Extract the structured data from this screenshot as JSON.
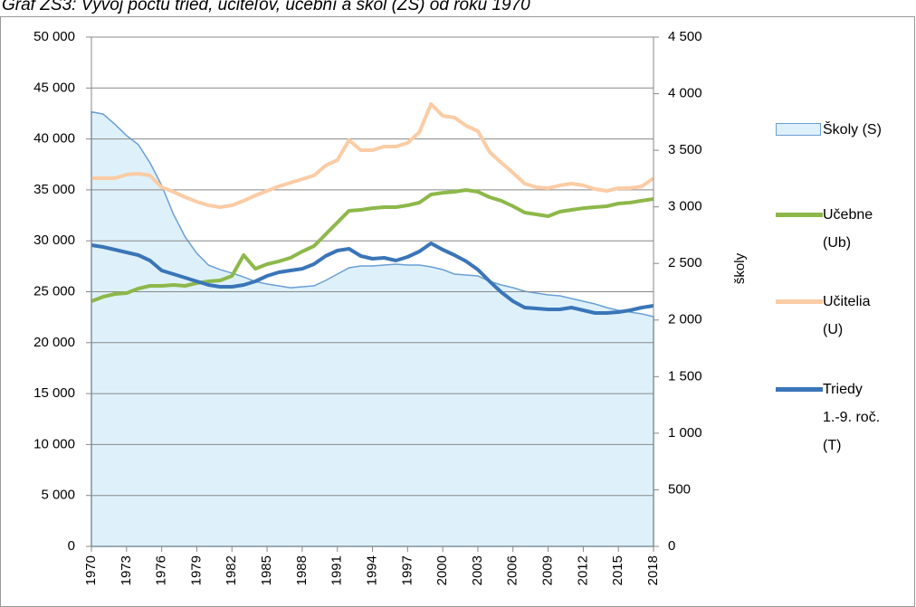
{
  "chart_data": {
    "type": "line",
    "title": "Graf ZŠ3: Vývoj počtu tried, učiteľov, učební a škôl (ZŠ) od roku 1970",
    "y2label": "školy",
    "x": [
      1970,
      1971,
      1972,
      1973,
      1974,
      1975,
      1976,
      1977,
      1978,
      1979,
      1980,
      1981,
      1982,
      1983,
      1984,
      1985,
      1986,
      1987,
      1988,
      1989,
      1990,
      1991,
      1992,
      1993,
      1994,
      1995,
      1996,
      1997,
      1998,
      1999,
      2000,
      2001,
      2002,
      2003,
      2004,
      2005,
      2006,
      2007,
      2008,
      2009,
      2010,
      2011,
      2012,
      2013,
      2014,
      2015,
      2016,
      2017,
      2018
    ],
    "xlim": [
      1970,
      2018
    ],
    "xticks": [
      1970,
      1973,
      1976,
      1979,
      1982,
      1985,
      1988,
      1991,
      1994,
      1997,
      2000,
      2003,
      2006,
      2009,
      2012,
      2015,
      2018
    ],
    "ylim": [
      0,
      50000
    ],
    "yticks": [
      0,
      {
        "value": 5000,
        "label": "5 000"
      },
      {
        "value": 10000,
        "label": "10 000"
      },
      {
        "value": 15000,
        "label": "15 000"
      },
      {
        "value": 20000,
        "label": "20 000"
      },
      {
        "value": 25000,
        "label": "25 000"
      },
      {
        "value": 30000,
        "label": "30 000"
      },
      {
        "value": 35000,
        "label": "35 000"
      },
      {
        "value": 40000,
        "label": "40 000"
      },
      {
        "value": 45000,
        "label": "45 000"
      },
      {
        "value": 50000,
        "label": "50 000"
      }
    ],
    "y2lim": [
      0,
      4500
    ],
    "y2ticks": [
      0,
      500,
      {
        "value": 1000,
        "label": "1 000"
      },
      {
        "value": 1500,
        "label": "1 500"
      },
      {
        "value": 2000,
        "label": "2 000"
      },
      {
        "value": 2500,
        "label": "2 500"
      },
      {
        "value": 3000,
        "label": "3 000"
      },
      {
        "value": 3500,
        "label": "3 500"
      },
      {
        "value": 4000,
        "label": "4 000"
      },
      {
        "value": 4500,
        "label": "4 500"
      }
    ],
    "grid": true,
    "legend": "right",
    "series": [
      {
        "name": "Školy (S)",
        "axis": "y2",
        "area": true,
        "color": "#6a9fd4",
        "fill_color": "#def1fb",
        "values": [
          3840,
          3820,
          3730,
          3630,
          3550,
          3390,
          3190,
          2935,
          2735,
          2590,
          2485,
          2445,
          2415,
          2380,
          2340,
          2318,
          2302,
          2285,
          2294,
          2302,
          2350,
          2406,
          2462,
          2478,
          2478,
          2486,
          2494,
          2486,
          2486,
          2470,
          2446,
          2406,
          2398,
          2390,
          2342,
          2310,
          2286,
          2254,
          2238,
          2222,
          2214,
          2190,
          2166,
          2142,
          2110,
          2086,
          2070,
          2054,
          2030
        ]
      },
      {
        "name": "Učebne (Ub)",
        "color": "#8db84a",
        "values": [
          24070,
          24500,
          24780,
          24870,
          25310,
          25580,
          25580,
          25670,
          25580,
          25850,
          26020,
          26110,
          26550,
          28600,
          27260,
          27710,
          27980,
          28330,
          28950,
          29480,
          30640,
          31790,
          32950,
          33040,
          33210,
          33300,
          33300,
          33480,
          33750,
          34550,
          34720,
          34810,
          34990,
          34810,
          34280,
          33930,
          33390,
          32770,
          32590,
          32420,
          32860,
          33040,
          33210,
          33300,
          33390,
          33660,
          33750,
          33930,
          34100
        ]
      },
      {
        "name": "Učitelia (U)",
        "color": "#fbcca5",
        "values": [
          36150,
          36150,
          36150,
          36500,
          36590,
          36410,
          35260,
          34810,
          34280,
          33840,
          33480,
          33300,
          33480,
          33930,
          34460,
          34900,
          35350,
          35700,
          36060,
          36410,
          37390,
          37920,
          39880,
          38900,
          38900,
          39250,
          39250,
          39610,
          40670,
          43430,
          42270,
          42100,
          41300,
          40760,
          38720,
          37660,
          36680,
          35610,
          35260,
          35170,
          35440,
          35610,
          35440,
          35080,
          34900,
          35170,
          35170,
          35350,
          36150
        ]
      },
      {
        "name": "Triedy 1.-9. roč. (T)",
        "color": "#3a75b8",
        "values": [
          29570,
          29400,
          29130,
          28860,
          28600,
          28060,
          27090,
          26730,
          26380,
          26020,
          25670,
          25490,
          25490,
          25670,
          26020,
          26550,
          26910,
          27090,
          27260,
          27710,
          28510,
          29040,
          29220,
          28510,
          28240,
          28330,
          28060,
          28420,
          28950,
          29750,
          29130,
          28600,
          27980,
          27180,
          26020,
          24960,
          24070,
          23450,
          23360,
          23270,
          23270,
          23450,
          23180,
          22910,
          22910,
          23000,
          23180,
          23450,
          23620
        ]
      }
    ]
  }
}
